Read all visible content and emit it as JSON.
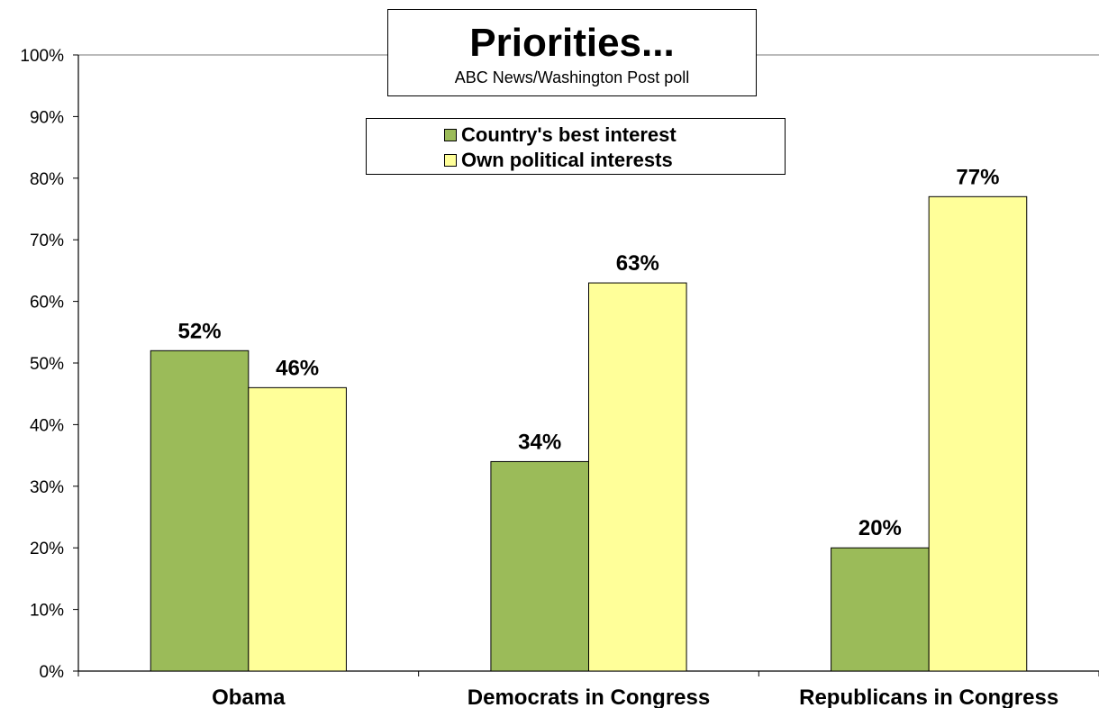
{
  "chart_data": {
    "type": "bar",
    "title": "Priorities...",
    "subtitle": "ABC News/Washington  Post poll",
    "categories": [
      "Obama",
      "Democrats in Congress",
      "Republicans in Congress"
    ],
    "series": [
      {
        "name": "Country's best interest",
        "values": [
          52,
          34,
          20
        ],
        "color": "#9bbb59"
      },
      {
        "name": "Own political interests",
        "values": [
          46,
          63,
          77
        ],
        "color": "#ffff99"
      }
    ],
    "data_labels": [
      [
        "52%",
        "34%",
        "20%"
      ],
      [
        "46%",
        "63%",
        "77%"
      ]
    ],
    "ylim": [
      0,
      100
    ],
    "yticks": [
      "0%",
      "10%",
      "20%",
      "30%",
      "40%",
      "50%",
      "60%",
      "70%",
      "80%",
      "90%",
      "100%"
    ],
    "xlabel": "",
    "ylabel": "",
    "grid": false,
    "legend": "top-center"
  }
}
